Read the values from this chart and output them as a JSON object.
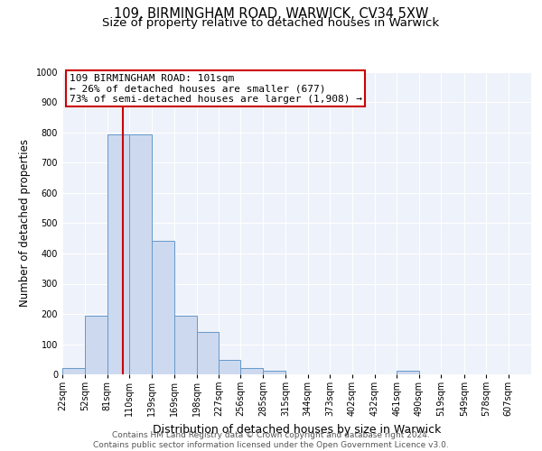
{
  "title1": "109, BIRMINGHAM ROAD, WARWICK, CV34 5XW",
  "title2": "Size of property relative to detached houses in Warwick",
  "xlabel": "Distribution of detached houses by size in Warwick",
  "ylabel": "Number of detached properties",
  "bin_edges": [
    22,
    52,
    81,
    110,
    139,
    169,
    198,
    227,
    256,
    285,
    315,
    344,
    373,
    402,
    432,
    461,
    490,
    519,
    549,
    578,
    607
  ],
  "bar_heights": [
    20,
    193,
    793,
    793,
    443,
    193,
    140,
    47,
    20,
    13,
    0,
    0,
    0,
    0,
    0,
    13,
    0,
    0,
    0,
    0
  ],
  "bar_color": "#cdd9ee",
  "bar_edge_color": "#6699cc",
  "vline_x": 101,
  "vline_color": "#cc0000",
  "annotation_line1": "109 BIRMINGHAM ROAD: 101sqm",
  "annotation_line2": "← 26% of detached houses are smaller (677)",
  "annotation_line3": "73% of semi-detached houses are larger (1,908) →",
  "annotation_box_color": "#cc0000",
  "ylim": [
    0,
    1000
  ],
  "tick_labels": [
    "22sqm",
    "52sqm",
    "81sqm",
    "110sqm",
    "139sqm",
    "169sqm",
    "198sqm",
    "227sqm",
    "256sqm",
    "285sqm",
    "315sqm",
    "344sqm",
    "373sqm",
    "402sqm",
    "432sqm",
    "461sqm",
    "490sqm",
    "519sqm",
    "549sqm",
    "578sqm",
    "607sqm"
  ],
  "footer_text": "Contains HM Land Registry data © Crown copyright and database right 2024.\nContains public sector information licensed under the Open Government Licence v3.0.",
  "bg_color": "#eef2fa",
  "grid_color": "#ffffff",
  "title1_fontsize": 10.5,
  "title2_fontsize": 9.5,
  "xlabel_fontsize": 9,
  "ylabel_fontsize": 8.5,
  "tick_fontsize": 7,
  "footer_fontsize": 6.5,
  "ann_fontsize": 8
}
